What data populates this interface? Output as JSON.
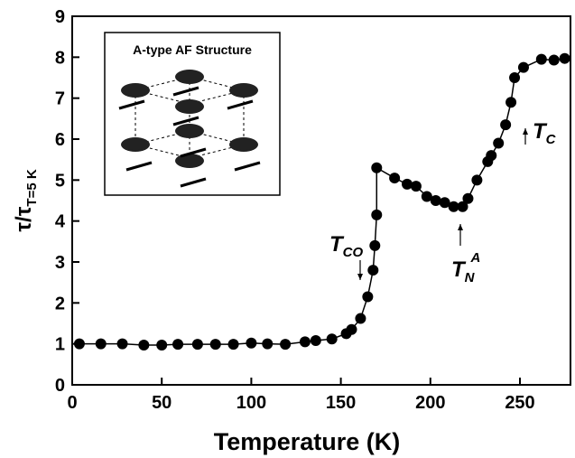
{
  "chart_data": {
    "type": "scatter-line",
    "x_label": "Temperature (K)",
    "y_label": {
      "main": "τ/τ",
      "sub": "T=5 K"
    },
    "inset_title": "A-type AF Structure",
    "annotations": [
      {
        "main": "T",
        "sub": "CO"
      },
      {
        "main": "T",
        "sub": "N",
        "sup": "A"
      },
      {
        "main": "T",
        "sub": "C"
      }
    ],
    "x": [
      4,
      16,
      28,
      40,
      50,
      59,
      70,
      80,
      90,
      100,
      109,
      119,
      130,
      136,
      145,
      153,
      156,
      161,
      165,
      168,
      169,
      170,
      170,
      180,
      187,
      192,
      198,
      203,
      208,
      213,
      218,
      221,
      226,
      232,
      234,
      238,
      242,
      245,
      247,
      252,
      262,
      269,
      275
    ],
    "values": [
      1.0,
      1.0,
      1.0,
      0.97,
      0.97,
      0.99,
      0.99,
      0.99,
      0.99,
      1.02,
      1.0,
      0.99,
      1.05,
      1.08,
      1.12,
      1.25,
      1.35,
      1.62,
      2.15,
      2.8,
      3.4,
      4.15,
      5.3,
      5.05,
      4.9,
      4.85,
      4.6,
      4.5,
      4.45,
      4.35,
      4.35,
      4.55,
      5.0,
      5.45,
      5.6,
      5.9,
      6.35,
      6.9,
      7.5,
      7.75,
      7.95,
      7.93,
      7.97
    ],
    "color": "#000000",
    "xlim": [
      0,
      275
    ],
    "xticks": [
      0,
      50,
      100,
      150,
      200,
      250
    ],
    "ylim": [
      0,
      9
    ],
    "yticks": [
      0,
      1,
      2,
      3,
      4,
      5,
      6,
      7,
      8,
      9
    ]
  }
}
